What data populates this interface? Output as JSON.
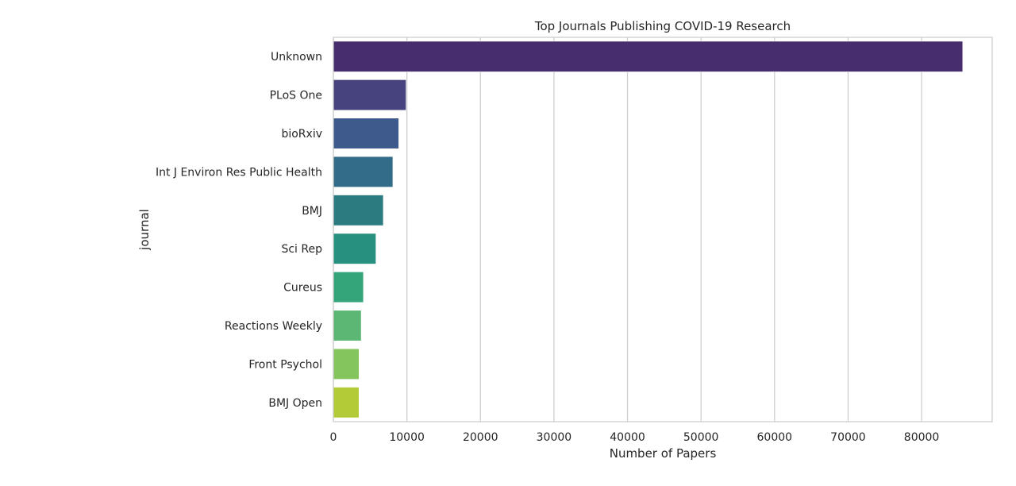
{
  "chart_data": {
    "type": "bar",
    "orientation": "horizontal",
    "title": "Top Journals Publishing COVID-19 Research",
    "xlabel": "Number of Papers",
    "ylabel": "journal",
    "categories": [
      "Unknown",
      "PLoS One",
      "bioRxiv",
      "Int J Environ Res Public Health",
      "BMJ",
      "Sci Rep",
      "Cureus",
      "Reactions Weekly",
      "Front Psychol",
      "BMJ Open"
    ],
    "values": [
      85600,
      9900,
      8900,
      8100,
      6800,
      5800,
      4100,
      3800,
      3500,
      3500
    ],
    "colors": [
      "#472c6e",
      "#46437e",
      "#3e5a8c",
      "#336c89",
      "#2b7b80",
      "#27907f",
      "#34a57a",
      "#5bb773",
      "#85c55e",
      "#b4cb38"
    ],
    "xlim": [
      0,
      89600
    ],
    "xticks": [
      0,
      10000,
      20000,
      30000,
      40000,
      50000,
      60000,
      70000,
      80000
    ],
    "xtick_labels": [
      "0",
      "10000",
      "20000",
      "30000",
      "40000",
      "50000",
      "60000",
      "70000",
      "80000"
    ],
    "grid": "vertical",
    "legend": "none"
  }
}
